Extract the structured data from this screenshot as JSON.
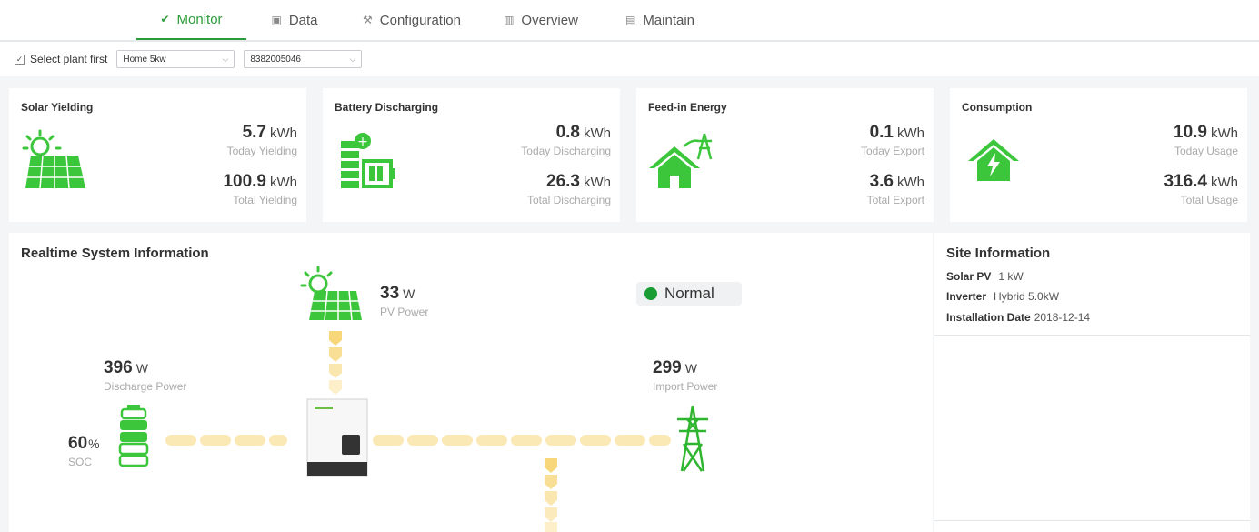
{
  "nav": {
    "tabs": [
      {
        "label": "Monitor",
        "icon": "monitor-icon",
        "active": true
      },
      {
        "label": "Data",
        "icon": "data-icon"
      },
      {
        "label": "Configuration",
        "icon": "configuration-icon"
      },
      {
        "label": "Overview",
        "icon": "overview-icon"
      },
      {
        "label": "Maintain",
        "icon": "maintain-icon"
      }
    ]
  },
  "filter": {
    "checkbox_label": "Select plant first",
    "plant": "Home 5kw",
    "device": "8382005046"
  },
  "cards": [
    {
      "title": "Solar Yielding",
      "icon": "solar-panel-icon",
      "today_value": "5.7",
      "today_unit": "kWh",
      "today_label": "Today Yielding",
      "total_value": "100.9",
      "total_unit": "kWh",
      "total_label": "Total Yielding"
    },
    {
      "title": "Battery Discharging",
      "icon": "battery-icon",
      "today_value": "0.8",
      "today_unit": "kWh",
      "today_label": "Today Discharging",
      "total_value": "26.3",
      "total_unit": "kWh",
      "total_label": "Total Discharging"
    },
    {
      "title": "Feed-in Energy",
      "icon": "house-grid-icon",
      "today_value": "0.1",
      "today_unit": "kWh",
      "today_label": "Today Export",
      "total_value": "3.6",
      "total_unit": "kWh",
      "total_label": "Total Export"
    },
    {
      "title": "Consumption",
      "icon": "house-power-icon",
      "today_value": "10.9",
      "today_unit": "kWh",
      "today_label": "Today Usage",
      "total_value": "316.4",
      "total_unit": "kWh",
      "total_label": "Total Usage"
    }
  ],
  "realtime": {
    "title": "Realtime System Information",
    "pv": {
      "value": "33",
      "unit": "W",
      "label": "PV Power"
    },
    "discharge": {
      "value": "396",
      "unit": "W",
      "label": "Discharge Power"
    },
    "soc": {
      "value": "60",
      "unit": "%",
      "label": "SOC"
    },
    "import": {
      "value": "299",
      "unit": "W",
      "label": "Import Power"
    },
    "status": "Normal",
    "status_color": "#1a9c35"
  },
  "site": {
    "title": "Site Information",
    "solar_pv_label": "Solar PV",
    "solar_pv_value": "1 kW",
    "inverter_label": "Inverter",
    "inverter_value": "Hybrid 5.0kW",
    "install_label": "Installation Date",
    "install_value": "2018-12-14"
  },
  "colors": {
    "accent": "#2a9d3a",
    "icon_green": "#3cc63c",
    "flow": "#f7d77a"
  }
}
